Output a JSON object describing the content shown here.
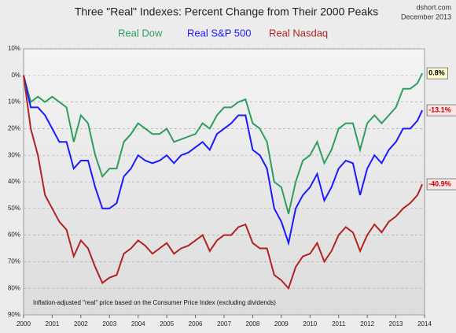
{
  "chart_data": {
    "type": "line",
    "title": "Three \"Real\" Indexes: Percent Change from Their 2000 Peaks",
    "source": "dshort.com",
    "date": "December 2013",
    "note": "Inflation-adjusted \"real\" price based on the Consumer Price Index (excluding dividends)",
    "x": [
      2000,
      2000.25,
      2000.5,
      2000.75,
      2001,
      2001.25,
      2001.5,
      2001.75,
      2002,
      2002.25,
      2002.5,
      2002.75,
      2003,
      2003.25,
      2003.5,
      2003.75,
      2004,
      2004.25,
      2004.5,
      2004.75,
      2005,
      2005.25,
      2005.5,
      2005.75,
      2006,
      2006.25,
      2006.5,
      2006.75,
      2007,
      2007.25,
      2007.5,
      2007.75,
      2008,
      2008.25,
      2008.5,
      2008.75,
      2009,
      2009.25,
      2009.5,
      2009.75,
      2010,
      2010.25,
      2010.5,
      2010.75,
      2011,
      2011.25,
      2011.5,
      2011.75,
      2012,
      2012.25,
      2012.5,
      2012.75,
      2013,
      2013.25,
      2013.5,
      2013.75,
      2013.92
    ],
    "series": [
      {
        "name": "Real Dow",
        "color": "#2e9e5e",
        "values": [
          0,
          -10,
          -8,
          -10,
          -8,
          -10,
          -12,
          -25,
          -15,
          -18,
          -30,
          -38,
          -35,
          -35,
          -25,
          -22,
          -18,
          -20,
          -22,
          -22,
          -20,
          -25,
          -24,
          -23,
          -22,
          -18,
          -20,
          -15,
          -12,
          -12,
          -10,
          -9,
          -18,
          -20,
          -25,
          -40,
          -42,
          -52,
          -40,
          -32,
          -30,
          -25,
          -33,
          -28,
          -20,
          -18,
          -18,
          -28,
          -18,
          -15,
          -18,
          -15,
          -12,
          -5,
          -5,
          -3,
          0.8
        ],
        "value_labels": [
          null,
          null,
          null,
          null,
          null,
          null,
          null,
          null,
          null,
          null,
          null,
          null,
          null,
          null,
          null,
          null,
          null,
          null,
          null,
          null,
          null,
          null,
          null,
          null,
          null,
          null,
          null,
          null,
          null,
          null,
          null,
          null,
          null,
          null,
          null,
          null,
          null,
          null,
          null,
          null,
          null,
          null,
          null,
          null,
          null,
          null,
          null,
          null,
          null,
          null,
          null,
          null,
          null,
          null,
          null,
          null,
          "0.8%"
        ],
        "label_fill": "#fffbd0"
      },
      {
        "name": "Real S&P 500",
        "color": "#1a1aff",
        "values": [
          0,
          -12,
          -12,
          -15,
          -20,
          -25,
          -25,
          -35,
          -32,
          -32,
          -42,
          -50,
          -50,
          -48,
          -38,
          -35,
          -30,
          -32,
          -33,
          -32,
          -30,
          -33,
          -30,
          -29,
          -27,
          -25,
          -28,
          -22,
          -20,
          -18,
          -15,
          -15,
          -28,
          -30,
          -35,
          -50,
          -55,
          -63,
          -50,
          -45,
          -42,
          -37,
          -47,
          -42,
          -35,
          -32,
          -33,
          -45,
          -35,
          -30,
          -33,
          -28,
          -25,
          -20,
          -20,
          -17,
          -13.1
        ],
        "value_labels": [
          null,
          null,
          null,
          null,
          null,
          null,
          null,
          null,
          null,
          null,
          null,
          null,
          null,
          null,
          null,
          null,
          null,
          null,
          null,
          null,
          null,
          null,
          null,
          null,
          null,
          null,
          null,
          null,
          null,
          null,
          null,
          null,
          null,
          null,
          null,
          null,
          null,
          null,
          null,
          null,
          null,
          null,
          null,
          null,
          null,
          null,
          null,
          null,
          null,
          null,
          null,
          null,
          null,
          null,
          null,
          null,
          "-13.1%"
        ],
        "label_fill": "#fde6e6"
      },
      {
        "name": "Real Nasdaq",
        "color": "#b22222",
        "values": [
          0,
          -20,
          -30,
          -45,
          -50,
          -55,
          -58,
          -68,
          -62,
          -65,
          -72,
          -78,
          -76,
          -75,
          -67,
          -65,
          -62,
          -64,
          -67,
          -65,
          -63,
          -67,
          -65,
          -64,
          -62,
          -60,
          -66,
          -62,
          -60,
          -60,
          -57,
          -56,
          -63,
          -65,
          -65,
          -75,
          -77,
          -80,
          -72,
          -68,
          -67,
          -63,
          -70,
          -66,
          -60,
          -57,
          -59,
          -66,
          -60,
          -56,
          -59,
          -55,
          -53,
          -50,
          -48,
          -45,
          -40.9
        ],
        "value_labels": [
          null,
          null,
          null,
          null,
          null,
          null,
          null,
          null,
          null,
          null,
          null,
          null,
          null,
          null,
          null,
          null,
          null,
          null,
          null,
          null,
          null,
          null,
          null,
          null,
          null,
          null,
          null,
          null,
          null,
          null,
          null,
          null,
          null,
          null,
          null,
          null,
          null,
          null,
          null,
          null,
          null,
          null,
          null,
          null,
          null,
          null,
          null,
          null,
          null,
          null,
          null,
          null,
          null,
          null,
          null,
          null,
          "-40.9%"
        ],
        "label_fill": "#fde6e6"
      }
    ],
    "xlim": [
      2000,
      2014
    ],
    "xticks": [
      2000,
      2001,
      2002,
      2003,
      2004,
      2005,
      2006,
      2007,
      2008,
      2009,
      2010,
      2011,
      2012,
      2013,
      2014
    ],
    "ylim": [
      -90,
      10
    ],
    "yticks": [
      {
        "value": 10,
        "label": "10%"
      },
      {
        "value": 0,
        "label": "0%"
      },
      {
        "value": -10,
        "label": "10%"
      },
      {
        "value": -20,
        "label": "20%"
      },
      {
        "value": -30,
        "label": "30%"
      },
      {
        "value": -40,
        "label": "40%"
      },
      {
        "value": -50,
        "label": "50%"
      },
      {
        "value": -60,
        "label": "60%"
      },
      {
        "value": -70,
        "label": "70%"
      },
      {
        "value": -80,
        "label": "80%"
      },
      {
        "value": -90,
        "label": "90%"
      }
    ],
    "grid": true
  }
}
